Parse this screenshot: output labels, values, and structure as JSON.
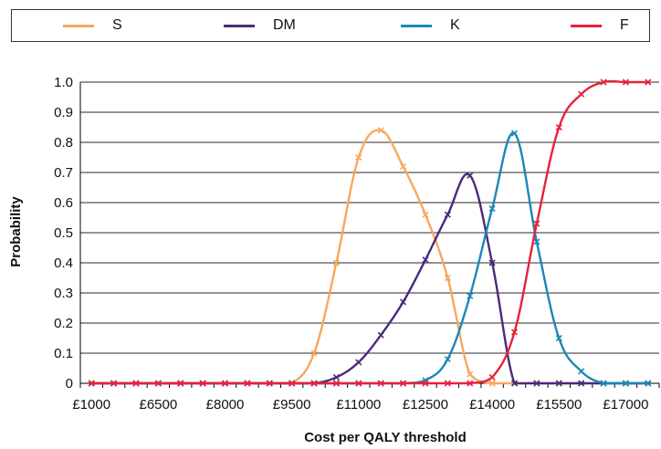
{
  "chart_data": {
    "type": "line",
    "title": "",
    "xlabel": "Cost per QALY threshold",
    "ylabel": "Probability",
    "ylim": [
      0,
      1.0
    ],
    "yticks": [
      "0",
      "0.1",
      "0.2",
      "0.3",
      "0.4",
      "0.5",
      "0.6",
      "0.7",
      "0.8",
      "0.9",
      "1.0"
    ],
    "x_tick_labels": [
      "£1000",
      "£6500",
      "£8000",
      "£9500",
      "£11000",
      "£12500",
      "£14000",
      "£15500",
      "£17000"
    ],
    "grid": true,
    "legend_position": "top",
    "point_count": 26,
    "series": [
      {
        "name": "S",
        "color": "#F7A85C",
        "values": [
          0,
          0,
          0,
          0,
          0,
          0,
          0,
          0,
          0,
          0,
          0.1,
          0.4,
          0.75,
          0.84,
          0.72,
          0.56,
          0.35,
          0.03,
          0,
          0,
          0,
          0,
          0,
          0,
          0,
          0
        ]
      },
      {
        "name": "DM",
        "color": "#4B2A7B",
        "values": [
          0,
          0,
          0,
          0,
          0,
          0,
          0,
          0,
          0,
          0,
          0,
          0.02,
          0.07,
          0.16,
          0.27,
          0.41,
          0.56,
          0.69,
          0.4,
          0,
          0,
          0,
          0,
          0,
          0,
          0
        ]
      },
      {
        "name": "K",
        "color": "#1B87B9",
        "values": [
          0,
          0,
          0,
          0,
          0,
          0,
          0,
          0,
          0,
          0,
          0,
          0,
          0,
          0,
          0,
          0.01,
          0.08,
          0.29,
          0.58,
          0.83,
          0.47,
          0.15,
          0.04,
          0,
          0,
          0
        ]
      },
      {
        "name": "F",
        "color": "#E8213A",
        "values": [
          0,
          0,
          0,
          0,
          0,
          0,
          0,
          0,
          0,
          0,
          0,
          0,
          0,
          0,
          0,
          0,
          0,
          0,
          0.02,
          0.17,
          0.53,
          0.85,
          0.96,
          1.0,
          1.0,
          1.0
        ]
      }
    ]
  }
}
